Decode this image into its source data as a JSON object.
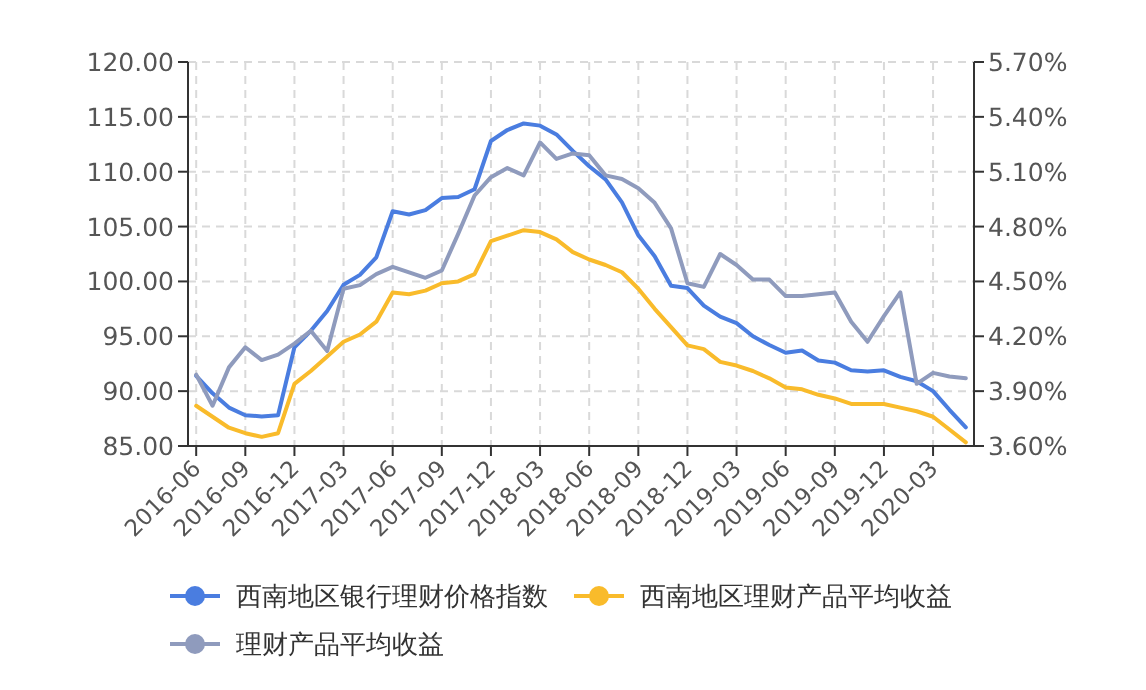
{
  "chart_data": {
    "type": "line",
    "categories": [
      "2016-06",
      null,
      null,
      "2016-09",
      null,
      null,
      "2016-12",
      null,
      null,
      "2017-03",
      null,
      null,
      "2017-06",
      null,
      null,
      "2017-09",
      null,
      null,
      "2017-12",
      null,
      null,
      "2018-03",
      null,
      null,
      "2018-06",
      null,
      null,
      "2018-09",
      null,
      null,
      "2018-12",
      null,
      null,
      "2019-03",
      null,
      null,
      "2019-06",
      null,
      null,
      "2019-09",
      null,
      null,
      "2019-12",
      null,
      null,
      "2020-03",
      null,
      null
    ],
    "series": [
      {
        "name": "西南地区银行理财价格指数",
        "color": "#4a7de0",
        "values": [
          91.4,
          89.8,
          88.5,
          87.8,
          87.7,
          87.8,
          94.0,
          95.5,
          97.3,
          99.7,
          100.6,
          102.2,
          106.4,
          106.1,
          106.5,
          107.6,
          107.7,
          108.4,
          112.8,
          113.8,
          114.4,
          114.2,
          113.4,
          111.9,
          110.5,
          109.3,
          107.2,
          104.2,
          102.3,
          99.6,
          99.4,
          97.8,
          96.8,
          96.2,
          95.0,
          94.2,
          93.5,
          93.7,
          92.8,
          92.6,
          91.9,
          91.8,
          91.9,
          91.3,
          90.9,
          90.0,
          88.3,
          86.7
        ]
      },
      {
        "name": "西南地区理财产品平均收益",
        "color": "#f9bb2b",
        "axis": "y2",
        "values": [
          3.82,
          3.76,
          3.7,
          3.67,
          3.65,
          3.67,
          3.94,
          4.01,
          4.09,
          4.17,
          4.21,
          4.28,
          4.44,
          4.43,
          4.45,
          4.49,
          4.5,
          4.54,
          4.72,
          4.75,
          4.78,
          4.77,
          4.73,
          4.66,
          4.62,
          4.59,
          4.55,
          4.46,
          4.35,
          4.25,
          4.15,
          4.13,
          4.06,
          4.04,
          4.01,
          3.97,
          3.92,
          3.91,
          3.88,
          3.86,
          3.83,
          3.83,
          3.83,
          3.81,
          3.79,
          3.76,
          3.69,
          3.62
        ]
      },
      {
        "name": "理财产品平均收益",
        "color": "#8f9bbd",
        "axis": "y2",
        "values": [
          3.99,
          3.82,
          4.03,
          4.14,
          4.07,
          4.1,
          4.16,
          4.23,
          4.12,
          4.46,
          4.48,
          4.54,
          4.58,
          4.55,
          4.52,
          4.56,
          4.76,
          4.97,
          5.07,
          5.12,
          5.08,
          5.26,
          5.17,
          5.2,
          5.19,
          5.08,
          5.06,
          5.01,
          4.93,
          4.79,
          4.49,
          4.47,
          4.65,
          4.59,
          4.51,
          4.51,
          4.42,
          4.42,
          4.43,
          4.44,
          4.28,
          4.17,
          4.31,
          4.44,
          3.94,
          4.0,
          3.98,
          3.97
        ]
      }
    ],
    "ylim": [
      85,
      120
    ],
    "yticks": [
      {
        "value": 85,
        "label": "85.00"
      },
      {
        "value": 90,
        "label": "90.00"
      },
      {
        "value": 95,
        "label": "95.00"
      },
      {
        "value": 100,
        "label": "100.00"
      },
      {
        "value": 105,
        "label": "105.00"
      },
      {
        "value": 110,
        "label": "110.00"
      },
      {
        "value": 115,
        "label": "115.00"
      },
      {
        "value": 120,
        "label": "120.00"
      }
    ],
    "y2lim": [
      3.6,
      5.7
    ],
    "y2ticks": [
      {
        "value": 3.6,
        "label": "3.60%"
      },
      {
        "value": 3.9,
        "label": "3.90%"
      },
      {
        "value": 4.2,
        "label": "4.20%"
      },
      {
        "value": 4.5,
        "label": "4.50%"
      },
      {
        "value": 4.8,
        "label": "4.80%"
      },
      {
        "value": 5.1,
        "label": "5.10%"
      },
      {
        "value": 5.4,
        "label": "5.40%"
      },
      {
        "value": 5.7,
        "label": "5.70%"
      }
    ],
    "grid": true,
    "legend": "bottom"
  }
}
